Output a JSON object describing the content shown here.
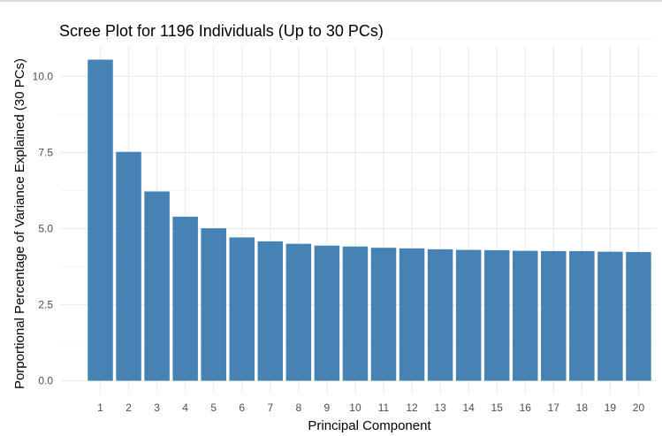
{
  "chart_data": {
    "type": "bar",
    "title": "Scree Plot for 1196 Individuals (Up to 30 PCs)",
    "xlabel": "Principal Component",
    "ylabel": "Porportional Percentage of Variance Explained (30 PCs)",
    "categories": [
      "1",
      "2",
      "3",
      "4",
      "5",
      "6",
      "7",
      "8",
      "9",
      "10",
      "11",
      "12",
      "13",
      "14",
      "15",
      "16",
      "17",
      "18",
      "19",
      "20"
    ],
    "values": [
      10.55,
      7.52,
      6.22,
      5.39,
      5.01,
      4.71,
      4.58,
      4.5,
      4.44,
      4.41,
      4.37,
      4.35,
      4.32,
      4.3,
      4.29,
      4.27,
      4.26,
      4.26,
      4.24,
      4.23
    ],
    "ylim": [
      -0.45,
      11.0
    ],
    "yticks": [
      0.0,
      2.5,
      5.0,
      7.5,
      10.0
    ],
    "ytick_labels": [
      "0.0",
      "2.5",
      "5.0",
      "7.5",
      "10.0"
    ],
    "grid": true,
    "legend": "none",
    "bar_color": "#4682B4"
  }
}
